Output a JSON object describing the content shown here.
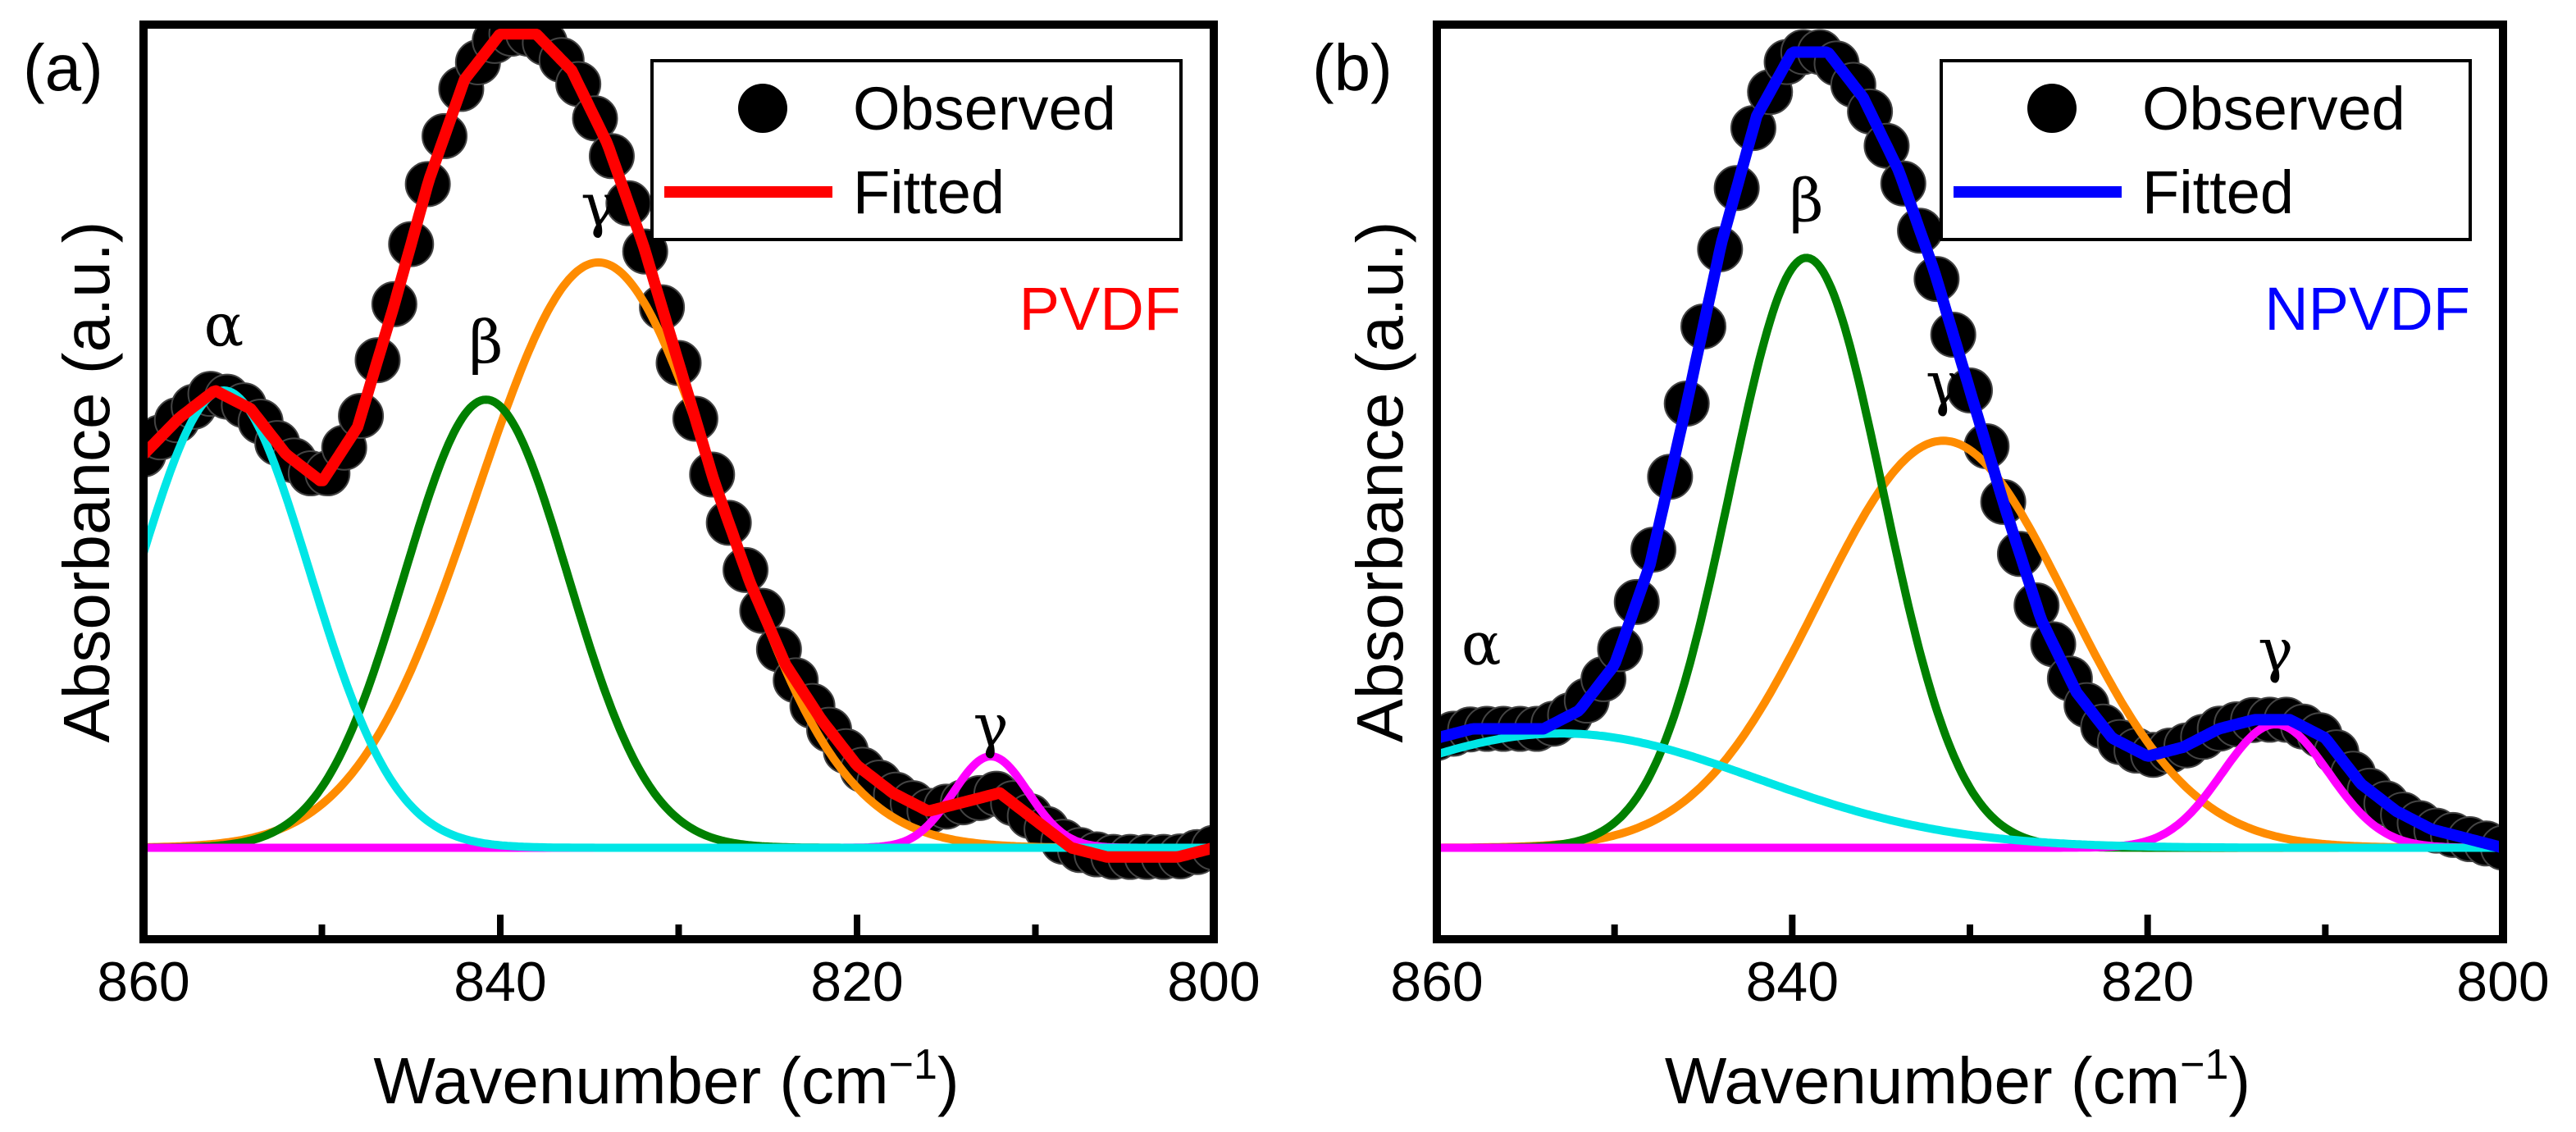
{
  "chart_data": [
    {
      "type": "line",
      "panel_label": "(a)",
      "sample_label": "PVDF",
      "sample_color": "#ff0000",
      "xlabel": "Wavenumber (cm",
      "xlabel_sup": "−1",
      "xlabel_close": ")",
      "ylabel": "Absorbance (a.u.)",
      "xlim": [
        860,
        800
      ],
      "x_ticks": [
        "860",
        "840",
        "820",
        "800"
      ],
      "ylim": [
        0,
        1.0
      ],
      "legend": {
        "position": "top-right",
        "observed": "Observed",
        "fitted": "Fitted"
      },
      "fitted_color": "#ff0000",
      "observed_color": "#000000",
      "baseline": 0.1,
      "peaks": [
        {
          "label": "α",
          "center": 855.5,
          "height": 0.5,
          "width": 4.8,
          "color": "#00e6e6",
          "label_x": 855.5
        },
        {
          "label": "β",
          "center": 840.8,
          "height": 0.49,
          "width": 4.6,
          "color": "#008000",
          "label_x": 840.8
        },
        {
          "label": "γ",
          "center": 834.5,
          "height": 0.64,
          "width": 6.8,
          "color": "#ff8c00",
          "label_x": 834.5
        },
        {
          "label": "γ",
          "center": 812.5,
          "height": 0.1,
          "width": 2.1,
          "color": "#ff00ff",
          "label_x": 812.5
        }
      ],
      "series": [
        {
          "name": "Observed",
          "x": [
            860,
            858,
            856,
            854,
            852,
            850,
            848,
            846,
            844,
            842,
            840,
            838,
            836,
            834,
            832,
            830,
            828,
            826,
            824,
            822,
            820,
            818,
            816,
            814,
            812,
            810,
            808,
            806,
            804,
            802,
            800
          ],
          "values": [
            0.53,
            0.57,
            0.6,
            0.58,
            0.53,
            0.5,
            0.56,
            0.69,
            0.83,
            0.94,
            0.99,
            0.99,
            0.95,
            0.87,
            0.76,
            0.63,
            0.5,
            0.39,
            0.3,
            0.24,
            0.19,
            0.16,
            0.14,
            0.15,
            0.16,
            0.13,
            0.1,
            0.09,
            0.09,
            0.09,
            0.1
          ]
        },
        {
          "name": "Fitted",
          "x": [
            860,
            858,
            856,
            854,
            852,
            850,
            848,
            846,
            844,
            842,
            840,
            838,
            836,
            834,
            832,
            830,
            828,
            826,
            824,
            822,
            820,
            818,
            816,
            814,
            812,
            810,
            808,
            806,
            804,
            802,
            800
          ],
          "values": [
            0.53,
            0.57,
            0.6,
            0.58,
            0.53,
            0.5,
            0.56,
            0.69,
            0.83,
            0.94,
            0.99,
            0.99,
            0.95,
            0.87,
            0.76,
            0.63,
            0.5,
            0.39,
            0.3,
            0.24,
            0.19,
            0.16,
            0.14,
            0.15,
            0.16,
            0.13,
            0.1,
            0.09,
            0.09,
            0.09,
            0.1
          ]
        }
      ]
    },
    {
      "type": "line",
      "panel_label": "(b)",
      "sample_label": "NPVDF",
      "sample_color": "#0000ff",
      "xlabel": "Wavenumber (cm",
      "xlabel_sup": "−1",
      "xlabel_close": ")",
      "ylabel": "Absorbance (a.u.)",
      "xlim": [
        860,
        800
      ],
      "x_ticks": [
        "860",
        "840",
        "820",
        "800"
      ],
      "ylim": [
        0,
        1.0
      ],
      "legend": {
        "position": "top-right",
        "observed": "Observed",
        "fitted": "Fitted"
      },
      "fitted_color": "#0000ff",
      "observed_color": "#000000",
      "baseline": 0.1,
      "peaks": [
        {
          "label": "α",
          "center": 853.0,
          "height": 0.125,
          "width": 11.0,
          "color": "#00e6e6",
          "label_x": 857.5
        },
        {
          "label": "β",
          "center": 839.2,
          "height": 0.645,
          "width": 4.3,
          "color": "#008000",
          "label_x": 839.2
        },
        {
          "label": "γ",
          "center": 831.5,
          "height": 0.445,
          "width": 7.0,
          "color": "#ff8c00",
          "label_x": 831.5
        },
        {
          "label": "γ",
          "center": 812.8,
          "height": 0.135,
          "width": 3.0,
          "color": "#ff00ff",
          "label_x": 812.8
        }
      ],
      "series": [
        {
          "name": "Observed",
          "x": [
            860,
            858,
            856,
            854,
            852,
            850,
            848,
            846,
            844,
            842,
            840,
            838,
            836,
            834,
            832,
            830,
            828,
            826,
            824,
            822,
            820,
            818,
            816,
            814,
            812,
            810,
            808,
            806,
            804,
            802,
            800
          ],
          "values": [
            0.22,
            0.23,
            0.23,
            0.23,
            0.25,
            0.3,
            0.41,
            0.58,
            0.76,
            0.9,
            0.97,
            0.97,
            0.92,
            0.84,
            0.73,
            0.6,
            0.47,
            0.35,
            0.27,
            0.22,
            0.2,
            0.21,
            0.23,
            0.24,
            0.24,
            0.22,
            0.17,
            0.14,
            0.12,
            0.11,
            0.1
          ]
        },
        {
          "name": "Fitted",
          "x": [
            860,
            858,
            856,
            854,
            852,
            850,
            848,
            846,
            844,
            842,
            840,
            838,
            836,
            834,
            832,
            830,
            828,
            826,
            824,
            822,
            820,
            818,
            816,
            814,
            812,
            810,
            808,
            806,
            804,
            802,
            800
          ],
          "values": [
            0.22,
            0.23,
            0.23,
            0.23,
            0.25,
            0.3,
            0.41,
            0.58,
            0.76,
            0.9,
            0.97,
            0.97,
            0.92,
            0.84,
            0.73,
            0.6,
            0.47,
            0.35,
            0.27,
            0.22,
            0.2,
            0.21,
            0.23,
            0.24,
            0.24,
            0.22,
            0.17,
            0.14,
            0.12,
            0.11,
            0.1
          ]
        }
      ]
    }
  ]
}
